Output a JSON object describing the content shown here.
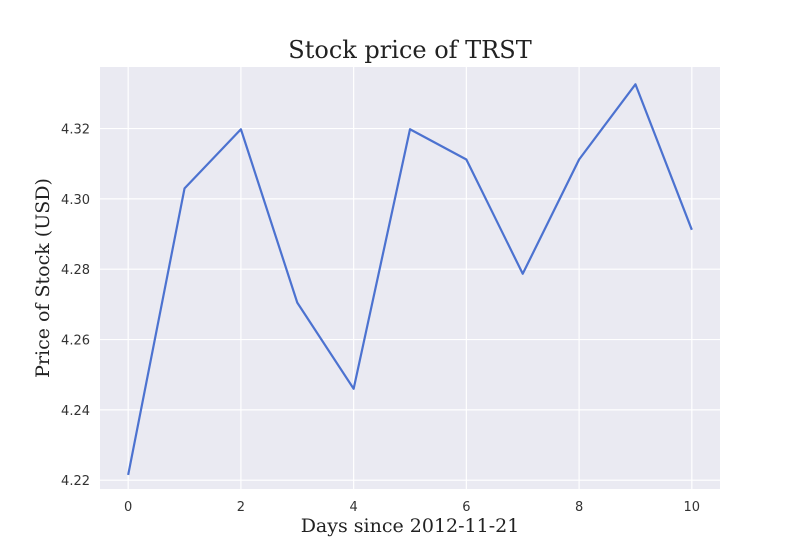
{
  "chart_data": {
    "type": "line",
    "title": "Stock price of TRST",
    "xlabel": "Days since 2012-11-21",
    "ylabel": "Price of Stock (USD)",
    "x": [
      0,
      1,
      2,
      3,
      4,
      5,
      6,
      7,
      8,
      9,
      10
    ],
    "series": [
      {
        "values": [
          4.2215,
          4.303,
          4.3198,
          4.2705,
          4.246,
          4.3198,
          4.3112,
          4.2787,
          4.3112,
          4.3326,
          4.2912
        ]
      }
    ],
    "xlim": [
      -0.5,
      10.5
    ],
    "ylim": [
      4.2175,
      4.3375
    ],
    "xticks": [
      0,
      2,
      4,
      6,
      8,
      10
    ],
    "yticks": [
      4.22,
      4.24,
      4.26,
      4.28,
      4.3,
      4.32
    ],
    "xtick_labels": [
      "0",
      "2",
      "4",
      "6",
      "8",
      "10"
    ],
    "ytick_labels": [
      "4.22",
      "4.24",
      "4.26",
      "4.28",
      "4.30",
      "4.32"
    ],
    "grid": true,
    "legend": false,
    "colors": {
      "line": "#4C72D0",
      "plot_bg": "#EAEAF2",
      "grid": "#FFFFFF"
    }
  }
}
